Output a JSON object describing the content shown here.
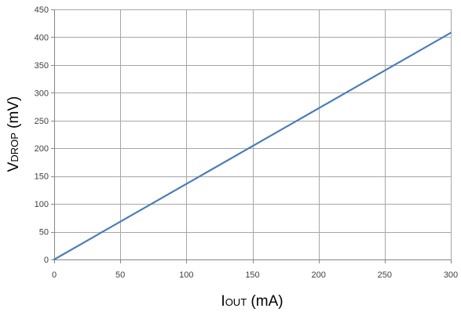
{
  "chart_data": {
    "type": "line",
    "xlabel": {
      "main": "I",
      "sub": "OUT",
      "unit": " (mA)"
    },
    "ylabel": {
      "main": "V",
      "sub": "DROP",
      "unit": " (mV)"
    },
    "xlim": [
      0,
      300
    ],
    "ylim": [
      0,
      450
    ],
    "x_ticks": [
      0,
      50,
      100,
      150,
      200,
      250,
      300
    ],
    "y_ticks": [
      0,
      50,
      100,
      150,
      200,
      250,
      300,
      350,
      400,
      450
    ],
    "grid": true,
    "series": [
      {
        "color": "#4a7ebb",
        "x": [
          0,
          300
        ],
        "y": [
          0,
          408
        ]
      }
    ]
  }
}
